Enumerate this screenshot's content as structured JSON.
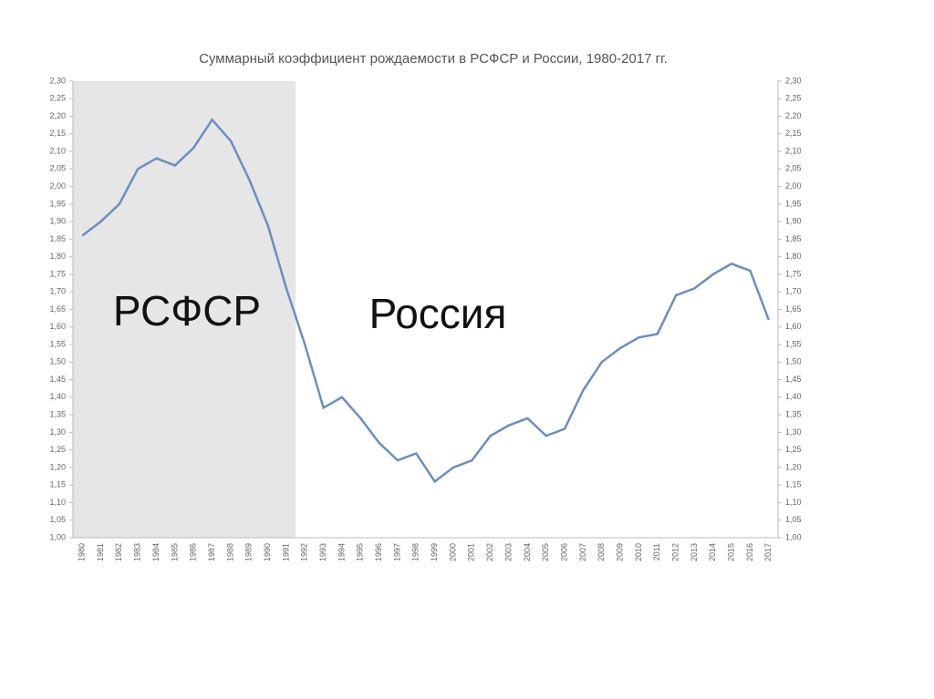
{
  "chart_data": {
    "type": "line",
    "title": "Суммарный коэффициент рождаемости в РСФСР и России, 1980-2017 гг.",
    "annotations": [
      "РСФСР",
      "Россия"
    ],
    "categories": [
      "1980",
      "1981",
      "1982",
      "1983",
      "1984",
      "1985",
      "1986",
      "1987",
      "1988",
      "1989",
      "1990",
      "1991",
      "1992",
      "1993",
      "1994",
      "1995",
      "1996",
      "1997",
      "1998",
      "1999",
      "2000",
      "2001",
      "2002",
      "2003",
      "2004",
      "2005",
      "2006",
      "2007",
      "2008",
      "2009",
      "2010",
      "2011",
      "2012",
      "2013",
      "2014",
      "2015",
      "2016",
      "2017"
    ],
    "series": [
      {
        "color": "#6a8fc0",
        "values": [
          1.86,
          1.9,
          1.95,
          2.05,
          2.08,
          2.06,
          2.11,
          2.19,
          2.13,
          2.02,
          1.89,
          1.71,
          1.55,
          1.37,
          1.4,
          1.34,
          1.27,
          1.22,
          1.24,
          1.16,
          1.2,
          1.22,
          1.29,
          1.32,
          1.34,
          1.29,
          1.31,
          1.42,
          1.5,
          1.54,
          1.57,
          1.58,
          1.69,
          1.71,
          1.75,
          1.78,
          1.76,
          1.62
        ]
      }
    ],
    "ylim": [
      1.0,
      2.3
    ],
    "yticks": [
      {
        "value": 1.0,
        "label": "1,00"
      },
      {
        "value": 1.05,
        "label": "1,05"
      },
      {
        "value": 1.1,
        "label": "1,10"
      },
      {
        "value": 1.15,
        "label": "1,15"
      },
      {
        "value": 1.2,
        "label": "1,20"
      },
      {
        "value": 1.25,
        "label": "1,25"
      },
      {
        "value": 1.3,
        "label": "1,30"
      },
      {
        "value": 1.35,
        "label": "1,35"
      },
      {
        "value": 1.4,
        "label": "1,40"
      },
      {
        "value": 1.45,
        "label": "1,45"
      },
      {
        "value": 1.5,
        "label": "1,50"
      },
      {
        "value": 1.55,
        "label": "1,55"
      },
      {
        "value": 1.6,
        "label": "1,60"
      },
      {
        "value": 1.65,
        "label": "1,65"
      },
      {
        "value": 1.7,
        "label": "1,70"
      },
      {
        "value": 1.75,
        "label": "1,75"
      },
      {
        "value": 1.8,
        "label": "1,80"
      },
      {
        "value": 1.85,
        "label": "1,85"
      },
      {
        "value": 1.9,
        "label": "1,90"
      },
      {
        "value": 1.95,
        "label": "1,95"
      },
      {
        "value": 2.0,
        "label": "2,00"
      },
      {
        "value": 2.05,
        "label": "2,05"
      },
      {
        "value": 2.1,
        "label": "2,10"
      },
      {
        "value": 2.15,
        "label": "2,15"
      },
      {
        "value": 2.2,
        "label": "2,20"
      },
      {
        "value": 2.25,
        "label": "2,25"
      },
      {
        "value": 2.3,
        "label": "2,30"
      }
    ],
    "y2lim": [
      1.0,
      2.3
    ],
    "y2ticks": [
      {
        "value": 1.0,
        "label": "1,00"
      },
      {
        "value": 1.05,
        "label": "1,05"
      },
      {
        "value": 1.1,
        "label": "1,10"
      },
      {
        "value": 1.15,
        "label": "1,15"
      },
      {
        "value": 1.2,
        "label": "1,20"
      },
      {
        "value": 1.25,
        "label": "1,25"
      },
      {
        "value": 1.3,
        "label": "1,30"
      },
      {
        "value": 1.35,
        "label": "1,35"
      },
      {
        "value": 1.4,
        "label": "1,40"
      },
      {
        "value": 1.45,
        "label": "1,45"
      },
      {
        "value": 1.5,
        "label": "1,50"
      },
      {
        "value": 1.55,
        "label": "1,55"
      },
      {
        "value": 1.6,
        "label": "1,60"
      },
      {
        "value": 1.65,
        "label": "1,65"
      },
      {
        "value": 1.7,
        "label": "1,70"
      },
      {
        "value": 1.75,
        "label": "1,75"
      },
      {
        "value": 1.8,
        "label": "1,80"
      },
      {
        "value": 1.85,
        "label": "1,85"
      },
      {
        "value": 1.9,
        "label": "1,90"
      },
      {
        "value": 1.95,
        "label": "1,95"
      },
      {
        "value": 2.0,
        "label": "2,00"
      },
      {
        "value": 2.05,
        "label": "2,05"
      },
      {
        "value": 2.1,
        "label": "2,10"
      },
      {
        "value": 2.15,
        "label": "2,15"
      },
      {
        "value": 2.2,
        "label": "2,20"
      },
      {
        "value": 2.25,
        "label": "2,25"
      },
      {
        "value": 2.3,
        "label": "2,30"
      }
    ],
    "grid": false
  }
}
